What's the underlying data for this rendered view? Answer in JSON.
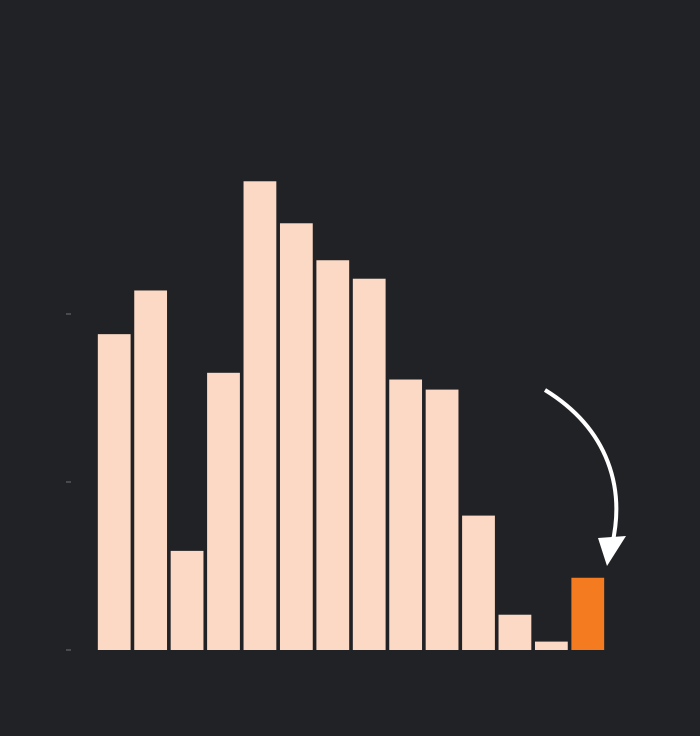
{
  "chart_data": {
    "type": "bar",
    "categories": [
      null,
      null,
      null,
      null,
      null,
      null,
      null,
      null,
      null,
      null,
      null,
      null,
      null,
      null
    ],
    "values": [
      1.88,
      2.14,
      0.59,
      1.65,
      2.79,
      2.54,
      2.32,
      2.21,
      1.61,
      1.55,
      0.8,
      0.21,
      0.05,
      0.43
    ],
    "colors": [
      "#fcd9c4",
      "#fcd9c4",
      "#fcd9c4",
      "#fcd9c4",
      "#fcd9c4",
      "#fcd9c4",
      "#fcd9c4",
      "#fcd9c4",
      "#fcd9c4",
      "#fcd9c4",
      "#fcd9c4",
      "#fcd9c4",
      "#fcd9c4",
      "#f47b20"
    ],
    "ylim": [
      0,
      3.25
    ],
    "yticks": [
      0,
      1,
      2
    ]
  }
}
